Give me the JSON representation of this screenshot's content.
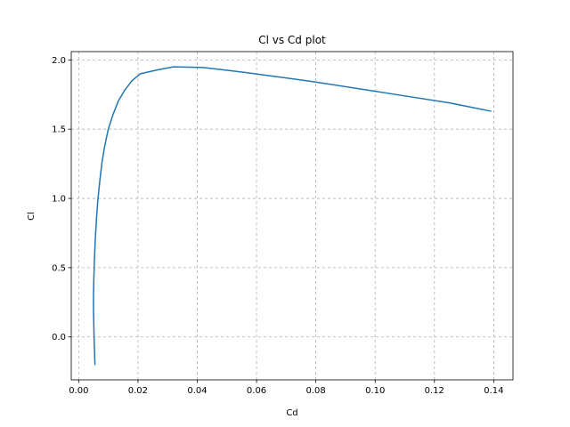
{
  "chart_data": {
    "type": "line",
    "title": "Cl vs Cd plot",
    "xlabel": "Cd",
    "ylabel": "Cl",
    "xlim": [
      -0.0025,
      0.1465
    ],
    "ylim": [
      -0.31,
      2.06
    ],
    "xticks": [
      0.0,
      0.02,
      0.04,
      0.06,
      0.08,
      0.1,
      0.12,
      0.14
    ],
    "xtick_labels": [
      "0.00",
      "0.02",
      "0.04",
      "0.06",
      "0.08",
      "0.10",
      "0.12",
      "0.14"
    ],
    "yticks": [
      0.0,
      0.5,
      1.0,
      1.5,
      2.0
    ],
    "ytick_labels": [
      "0.0",
      "0.5",
      "1.0",
      "1.5",
      "2.0"
    ],
    "grid": true,
    "series": [
      {
        "color": "#1f77b4",
        "x": [
          0.0055,
          0.0052,
          0.005,
          0.005,
          0.0051,
          0.0053,
          0.0056,
          0.006,
          0.0064,
          0.007,
          0.0078,
          0.0088,
          0.01,
          0.0115,
          0.0133,
          0.0155,
          0.018,
          0.0208,
          0.027,
          0.032,
          0.042,
          0.056,
          0.07,
          0.08,
          0.095,
          0.11,
          0.125,
          0.139
        ],
        "y": [
          -0.2,
          0.0,
          0.2,
          0.3,
          0.4,
          0.55,
          0.7,
          0.85,
          0.97,
          1.1,
          1.25,
          1.38,
          1.5,
          1.6,
          1.7,
          1.78,
          1.85,
          1.9,
          1.93,
          1.95,
          1.945,
          1.91,
          1.87,
          1.84,
          1.79,
          1.74,
          1.69,
          1.63
        ]
      }
    ]
  }
}
